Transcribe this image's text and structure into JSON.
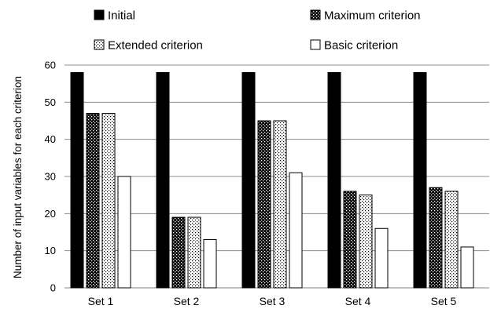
{
  "chart_data": {
    "type": "bar",
    "title": "",
    "xlabel": "",
    "ylabel": "Number of input variables for each criterion",
    "ylim": [
      0,
      60
    ],
    "yticks": [
      0,
      10,
      20,
      30,
      40,
      50,
      60
    ],
    "grid": true,
    "legend_position": "top",
    "categories": [
      "Set 1",
      "Set 2",
      "Set 3",
      "Set 4",
      "Set 5"
    ],
    "series": [
      {
        "name": "Initial",
        "values": [
          58,
          58,
          58,
          58,
          58
        ],
        "fill": "solid-black"
      },
      {
        "name": "Maximum criterion",
        "values": [
          47,
          19,
          45,
          26,
          27
        ],
        "fill": "dense-dots"
      },
      {
        "name": "Extended criterion",
        "values": [
          47,
          19,
          45,
          25,
          26
        ],
        "fill": "light-dots"
      },
      {
        "name": "Basic criterion",
        "values": [
          30,
          13,
          31,
          16,
          11
        ],
        "fill": "white"
      }
    ]
  }
}
